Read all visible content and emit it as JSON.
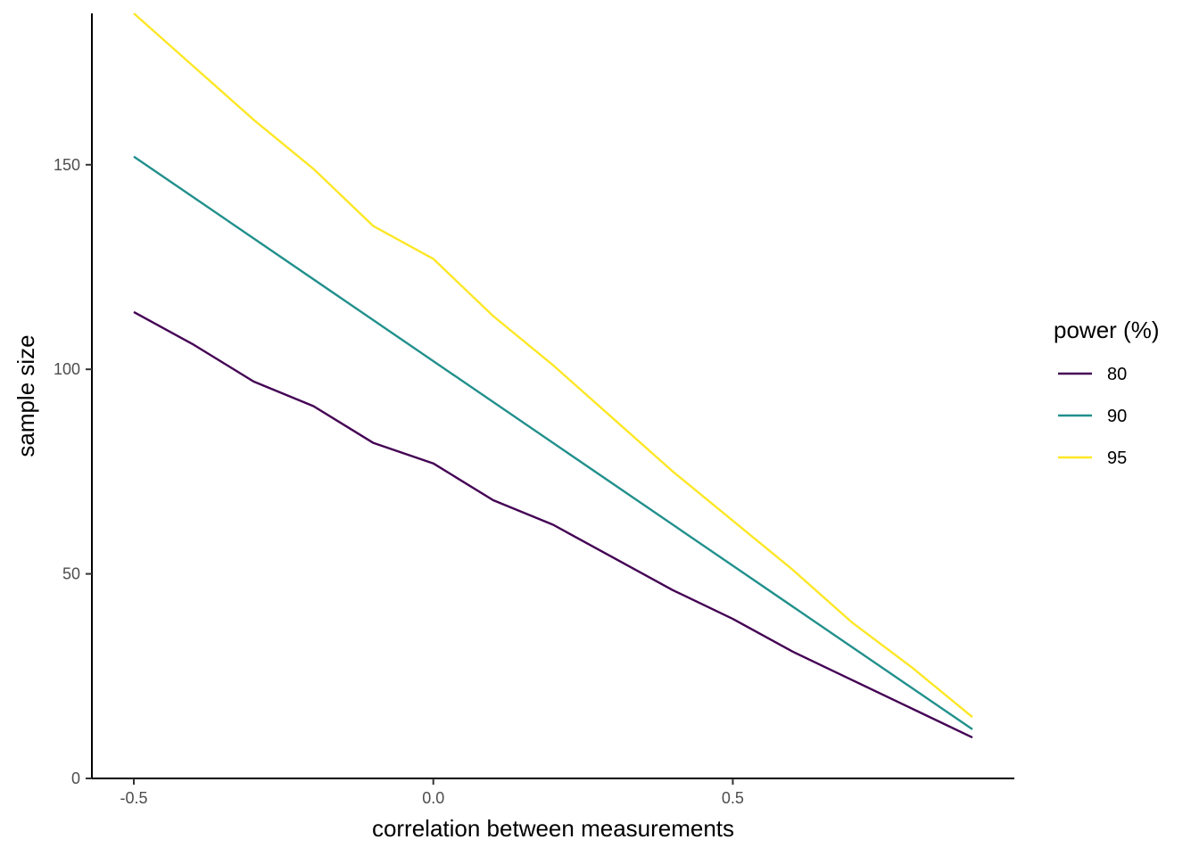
{
  "chart_data": {
    "type": "line",
    "title": "",
    "xlabel": "correlation between measurements",
    "ylabel": "sample size",
    "xlim": [
      -0.57,
      0.97
    ],
    "ylim": [
      0,
      187
    ],
    "x_ticks": [
      {
        "value": -0.5,
        "label": "-0.5"
      },
      {
        "value": 0.0,
        "label": "0.0"
      },
      {
        "value": 0.5,
        "label": "0.5"
      }
    ],
    "y_ticks": [
      {
        "value": 0,
        "label": "0"
      },
      {
        "value": 50,
        "label": "50"
      },
      {
        "value": 100,
        "label": "100"
      },
      {
        "value": 150,
        "label": "150"
      }
    ],
    "grid": false,
    "legend": {
      "title": "power (%)",
      "position": "right"
    },
    "series": [
      {
        "name": "80",
        "color": "#440154",
        "points": [
          [
            -0.5,
            114
          ],
          [
            -0.4,
            106
          ],
          [
            -0.3,
            97
          ],
          [
            -0.2,
            91
          ],
          [
            -0.1,
            82
          ],
          [
            0.0,
            77
          ],
          [
            0.1,
            68
          ],
          [
            0.2,
            62
          ],
          [
            0.3,
            54
          ],
          [
            0.4,
            46
          ],
          [
            0.5,
            39
          ],
          [
            0.6,
            31
          ],
          [
            0.7,
            24
          ],
          [
            0.8,
            17
          ],
          [
            0.9,
            10
          ]
        ]
      },
      {
        "name": "90",
        "color": "#21908C",
        "points": [
          [
            -0.5,
            152
          ],
          [
            0.9,
            12
          ]
        ]
      },
      {
        "name": "95",
        "color": "#FDE725",
        "points": [
          [
            -0.5,
            187
          ],
          [
            -0.4,
            174
          ],
          [
            -0.3,
            161
          ],
          [
            -0.2,
            149
          ],
          [
            -0.1,
            135
          ],
          [
            0.0,
            127
          ],
          [
            0.1,
            113
          ],
          [
            0.2,
            101
          ],
          [
            0.3,
            88
          ],
          [
            0.4,
            75
          ],
          [
            0.5,
            63
          ],
          [
            0.6,
            51
          ],
          [
            0.7,
            38
          ],
          [
            0.8,
            27
          ],
          [
            0.9,
            15
          ]
        ]
      }
    ]
  }
}
